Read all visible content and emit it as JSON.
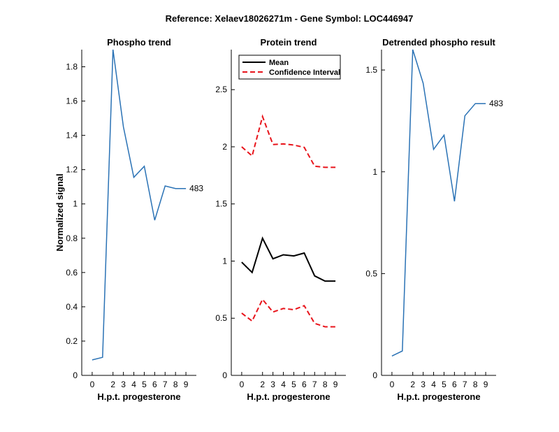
{
  "figure_title": "Reference:  Xelaev18026271m - Gene Symbol:  LOC446947",
  "colors": {
    "blue": "#2a72b5",
    "black": "#000000",
    "red": "#e8141b"
  },
  "chart_data": [
    {
      "type": "line",
      "title": "Phospho trend",
      "xlabel": "H.p.t. progesterone",
      "ylabel": "Normalized signal",
      "xlim": [
        -1,
        10
      ],
      "ylim": [
        0,
        1.9
      ],
      "xticks": [
        0,
        2,
        3,
        4,
        5,
        6,
        7,
        8,
        9
      ],
      "yticks": [
        0,
        0.2,
        0.4,
        0.6,
        0.8,
        1,
        1.2,
        1.4,
        1.6,
        1.8
      ],
      "ytick_labels": [
        "0",
        "0.2",
        "0.4",
        "0.6",
        "0.8",
        "1",
        "1.2",
        "1.4",
        "1.6",
        "1.8"
      ],
      "series": [
        {
          "color": "#2a72b5",
          "style": "solid",
          "end_label": "483",
          "x": [
            0,
            1,
            2,
            3,
            4,
            5,
            6,
            7,
            8,
            9
          ],
          "y": [
            0.09,
            0.105,
            1.9,
            1.45,
            1.155,
            1.22,
            0.905,
            1.105,
            1.09,
            1.09
          ]
        }
      ]
    },
    {
      "type": "line",
      "title": "Protein trend",
      "xlabel": "H.p.t. progesterone",
      "ylabel": "",
      "xlim": [
        -1,
        10
      ],
      "ylim": [
        0,
        2.85
      ],
      "xticks": [
        0,
        2,
        3,
        4,
        5,
        6,
        7,
        8,
        9
      ],
      "yticks": [
        0,
        0.5,
        1,
        1.5,
        2,
        2.5
      ],
      "ytick_labels": [
        "0",
        "0.5",
        "1",
        "1.5",
        "2",
        "2.5"
      ],
      "legend": {
        "position": "top-left",
        "entries": [
          "Mean",
          "Confidence Interval"
        ]
      },
      "series": [
        {
          "name": "Mean",
          "color": "#000000",
          "style": "solid",
          "x": [
            0,
            1,
            2,
            3,
            4,
            5,
            6,
            7,
            8,
            9
          ],
          "y": [
            0.99,
            0.9,
            1.2,
            1.02,
            1.055,
            1.045,
            1.07,
            0.87,
            0.825,
            0.825
          ]
        },
        {
          "name": "Confidence Interval",
          "color": "#e8141b",
          "style": "dashed",
          "x": [
            0,
            1,
            2,
            3,
            4,
            5,
            6,
            7,
            8,
            9
          ],
          "y": [
            2.0,
            1.92,
            2.265,
            2.02,
            2.025,
            2.015,
            1.995,
            1.83,
            1.82,
            1.82
          ]
        },
        {
          "name": "Confidence Interval",
          "color": "#e8141b",
          "style": "dashed",
          "x": [
            0,
            1,
            2,
            3,
            4,
            5,
            6,
            7,
            8,
            9
          ],
          "y": [
            0.545,
            0.475,
            0.665,
            0.555,
            0.585,
            0.575,
            0.61,
            0.455,
            0.425,
            0.425
          ]
        }
      ]
    },
    {
      "type": "line",
      "title": "Detrended phospho result",
      "xlabel": "H.p.t. progesterone",
      "ylabel": "",
      "xlim": [
        -1,
        10
      ],
      "ylim": [
        0,
        1.6
      ],
      "xticks": [
        0,
        2,
        3,
        4,
        5,
        6,
        7,
        8,
        9
      ],
      "yticks": [
        0,
        0.5,
        1,
        1.5
      ],
      "ytick_labels": [
        "0",
        "0.5",
        "1",
        "1.5"
      ],
      "series": [
        {
          "color": "#2a72b5",
          "style": "solid",
          "end_label": "483",
          "x": [
            0,
            1,
            2,
            3,
            4,
            5,
            6,
            7,
            8,
            9
          ],
          "y": [
            0.095,
            0.12,
            1.6,
            1.435,
            1.11,
            1.18,
            0.855,
            1.275,
            1.335,
            1.335
          ]
        }
      ]
    }
  ]
}
